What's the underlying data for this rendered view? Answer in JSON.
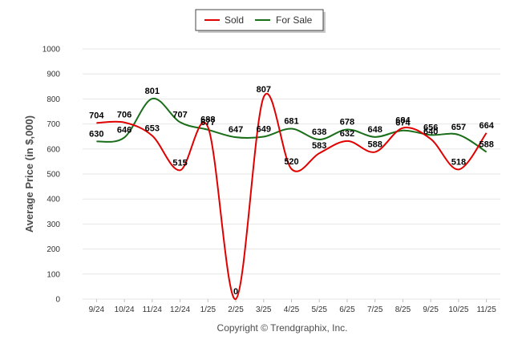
{
  "chart_data": {
    "type": "line",
    "title": "",
    "xlabel": "",
    "ylabel": "Average Price (in $,000)",
    "caption": "Copyright © Trendgraphix, Inc.",
    "categories": [
      "9/24",
      "10/24",
      "11/24",
      "12/24",
      "1/25",
      "2/25",
      "3/25",
      "4/25",
      "5/25",
      "6/25",
      "7/25",
      "8/25",
      "9/25",
      "10/25",
      "11/25"
    ],
    "ylim": [
      0,
      1000
    ],
    "yticks": [
      0,
      100,
      200,
      300,
      400,
      500,
      600,
      700,
      800,
      900,
      1000
    ],
    "grid": true,
    "legend_position": "top-center",
    "series": [
      {
        "name": "Sold",
        "color": "#e00000",
        "values": [
          704,
          706,
          653,
          515,
          688,
          0,
          807,
          520,
          583,
          632,
          588,
          684,
          640,
          518,
          664
        ]
      },
      {
        "name": "For Sale",
        "color": "#1a6e1a",
        "values": [
          630,
          646,
          801,
          707,
          677,
          647,
          649,
          681,
          638,
          678,
          648,
          674,
          656,
          657,
          588
        ]
      }
    ]
  }
}
